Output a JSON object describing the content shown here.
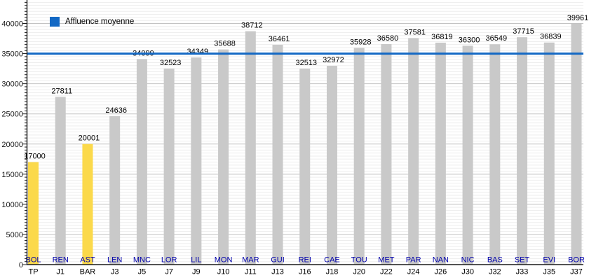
{
  "chart_data": {
    "type": "bar",
    "title": "",
    "xlabel": "",
    "ylabel": "",
    "ylim": [
      0,
      43500
    ],
    "grid": true,
    "y_ticks": [
      0,
      5000,
      10000,
      15000,
      20000,
      25000,
      30000,
      35000,
      40000
    ],
    "y_minor_tick_interval": 500,
    "legend": {
      "label": "Affluence moyenne",
      "position": "top-left"
    },
    "average_line": {
      "label": "Affluence moyenne",
      "value": 35000
    },
    "bars": [
      {
        "team": "BOL",
        "match": "TP",
        "value": 17000,
        "highlight": true
      },
      {
        "team": "REN",
        "match": "J1",
        "value": 27811,
        "highlight": false
      },
      {
        "team": "AST",
        "match": "BAR",
        "value": 20001,
        "highlight": true
      },
      {
        "team": "LEN",
        "match": "J3",
        "value": 24636,
        "highlight": false
      },
      {
        "team": "MNC",
        "match": "J5",
        "value": 34099,
        "highlight": false
      },
      {
        "team": "LOR",
        "match": "J7",
        "value": 32523,
        "highlight": false
      },
      {
        "team": "LIL",
        "match": "J9",
        "value": 34349,
        "highlight": false
      },
      {
        "team": "MON",
        "match": "J10",
        "value": 35688,
        "highlight": false
      },
      {
        "team": "MAR",
        "match": "J11",
        "value": 38712,
        "highlight": false
      },
      {
        "team": "GUI",
        "match": "J13",
        "value": 36461,
        "highlight": false
      },
      {
        "team": "REI",
        "match": "J16",
        "value": 32513,
        "highlight": false
      },
      {
        "team": "CAE",
        "match": "J18",
        "value": 32972,
        "highlight": false
      },
      {
        "team": "TOU",
        "match": "J20",
        "value": 35928,
        "highlight": false
      },
      {
        "team": "MET",
        "match": "J22",
        "value": 36580,
        "highlight": false
      },
      {
        "team": "PAR",
        "match": "J24",
        "value": 37581,
        "highlight": false
      },
      {
        "team": "NAN",
        "match": "J26",
        "value": 36819,
        "highlight": false
      },
      {
        "team": "NIC",
        "match": "J30",
        "value": 36300,
        "highlight": false
      },
      {
        "team": "BAS",
        "match": "J32",
        "value": 36549,
        "highlight": false
      },
      {
        "team": "SET",
        "match": "J33",
        "value": 37715,
        "highlight": false
      },
      {
        "team": "EVI",
        "match": "J35",
        "value": 36839,
        "highlight": false
      },
      {
        "team": "BOR",
        "match": "J37",
        "value": 39961,
        "highlight": false
      }
    ],
    "colors": {
      "bar": "#c9c9c9",
      "bar_highlight": "#fbd94b",
      "average_line": "#1268c4",
      "team_label": "#0000aa",
      "value_label": "#000000",
      "match_label": "#000000",
      "axis": "#1a1a1a",
      "grid_major": "#c2c2c2",
      "grid_minor": "#ededed"
    }
  }
}
